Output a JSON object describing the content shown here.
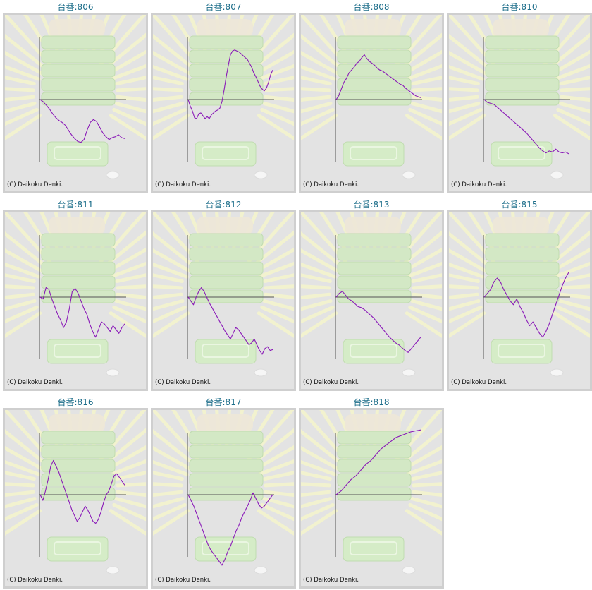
{
  "credit": "(C) Daikoku Denki.",
  "line_color": "#8a1ab8",
  "title_color": "#1d6e8a",
  "chart_data": [
    {
      "type": "line",
      "title": "台番:806",
      "values": [
        0.0,
        -0.12,
        -0.3,
        -0.5,
        -0.75,
        -0.95,
        -1.1,
        -1.2,
        -1.35,
        -1.6,
        -1.85,
        -2.05,
        -2.2,
        -2.25,
        -2.1,
        -1.6,
        -1.2,
        -1.05,
        -1.15,
        -1.45,
        -1.75,
        -1.95,
        -2.1,
        -2.0,
        -1.95,
        -1.85,
        -2.0,
        -2.05
      ]
    },
    {
      "type": "line",
      "title": "台番:807",
      "values": [
        0.0,
        -0.35,
        -0.6,
        -0.95,
        -1.0,
        -0.75,
        -0.7,
        -0.85,
        -1.0,
        -0.9,
        -1.0,
        -0.8,
        -0.7,
        -0.6,
        -0.55,
        -0.45,
        -0.1,
        0.5,
        1.2,
        1.8,
        2.35,
        2.55,
        2.6,
        2.55,
        2.5,
        2.4,
        2.3,
        2.2,
        2.1,
        1.9,
        1.7,
        1.4,
        1.2,
        0.95,
        0.7,
        0.55,
        0.45,
        0.6,
        0.9,
        1.3,
        1.55
      ]
    },
    {
      "type": "line",
      "title": "台番:808",
      "values": [
        0.0,
        0.2,
        0.55,
        0.9,
        1.1,
        1.4,
        1.55,
        1.7,
        1.9,
        2.0,
        2.2,
        2.35,
        2.15,
        2.0,
        1.9,
        1.8,
        1.65,
        1.55,
        1.5,
        1.4,
        1.3,
        1.2,
        1.1,
        1.0,
        0.9,
        0.8,
        0.75,
        0.6,
        0.5,
        0.4,
        0.3,
        0.2,
        0.15,
        0.1
      ]
    },
    {
      "type": "line",
      "title": "台番:810",
      "values": [
        0.0,
        -0.15,
        -0.2,
        -0.25,
        -0.4,
        -0.55,
        -0.7,
        -0.85,
        -1.0,
        -1.15,
        -1.3,
        -1.45,
        -1.6,
        -1.75,
        -1.95,
        -2.15,
        -2.35,
        -2.55,
        -2.7,
        -2.8,
        -2.7,
        -2.75,
        -2.6,
        -2.75,
        -2.8,
        -2.75,
        -2.85
      ]
    },
    {
      "type": "line",
      "title": "台番:811",
      "values": [
        0.0,
        -0.1,
        0.5,
        0.4,
        -0.1,
        -0.5,
        -0.9,
        -1.2,
        -1.6,
        -1.3,
        -0.6,
        0.3,
        0.45,
        0.2,
        -0.2,
        -0.6,
        -0.9,
        -1.4,
        -1.8,
        -2.1,
        -1.7,
        -1.3,
        -1.4,
        -1.6,
        -1.8,
        -1.5,
        -1.7,
        -1.9,
        -1.6,
        -1.4
      ]
    },
    {
      "type": "line",
      "title": "台番:812",
      "values": [
        0.0,
        -0.2,
        -0.4,
        0.0,
        0.3,
        0.5,
        0.3,
        0.0,
        -0.3,
        -0.55,
        -0.8,
        -1.05,
        -1.3,
        -1.55,
        -1.8,
        -2.0,
        -2.2,
        -1.9,
        -1.6,
        -1.7,
        -1.9,
        -2.1,
        -2.3,
        -2.5,
        -2.4,
        -2.2,
        -2.5,
        -2.8,
        -3.0,
        -2.7,
        -2.6,
        -2.8,
        -2.75
      ]
    },
    {
      "type": "line",
      "title": "台番:813",
      "values": [
        0.0,
        0.2,
        0.3,
        0.1,
        -0.1,
        -0.2,
        -0.35,
        -0.5,
        -0.55,
        -0.65,
        -0.8,
        -0.95,
        -1.1,
        -1.3,
        -1.5,
        -1.7,
        -1.9,
        -2.1,
        -2.25,
        -2.4,
        -2.5,
        -2.65,
        -2.8,
        -2.9,
        -2.7,
        -2.5,
        -2.3,
        -2.1
      ]
    },
    {
      "type": "line",
      "title": "台番:815",
      "values": [
        0.0,
        0.2,
        0.4,
        0.8,
        1.0,
        0.8,
        0.4,
        0.1,
        -0.2,
        -0.4,
        -0.1,
        -0.5,
        -0.8,
        -1.2,
        -1.5,
        -1.3,
        -1.6,
        -1.9,
        -2.1,
        -1.8,
        -1.4,
        -0.9,
        -0.4,
        0.1,
        0.6,
        1.0,
        1.3
      ]
    },
    {
      "type": "line",
      "title": "台番:816",
      "values": [
        0.0,
        -0.3,
        0.2,
        0.8,
        1.5,
        1.8,
        1.5,
        1.2,
        0.8,
        0.4,
        0.0,
        -0.4,
        -0.8,
        -1.1,
        -1.4,
        -1.2,
        -0.9,
        -0.6,
        -0.8,
        -1.1,
        -1.4,
        -1.5,
        -1.3,
        -0.9,
        -0.4,
        0.0,
        0.2,
        0.6,
        1.0,
        1.1,
        0.9,
        0.7,
        0.5
      ]
    },
    {
      "type": "line",
      "title": "台番:817",
      "values": [
        0.0,
        -0.3,
        -0.6,
        -1.0,
        -1.4,
        -1.8,
        -2.2,
        -2.6,
        -2.9,
        -3.1,
        -3.3,
        -3.5,
        -3.7,
        -3.4,
        -3.0,
        -2.7,
        -2.3,
        -1.9,
        -1.6,
        -1.2,
        -0.9,
        -0.6,
        -0.3,
        0.1,
        -0.2,
        -0.5,
        -0.7,
        -0.6,
        -0.4,
        -0.2,
        0.0
      ]
    },
    {
      "type": "line",
      "title": "台番:818",
      "values": [
        0.0,
        0.2,
        0.5,
        0.8,
        1.0,
        1.3,
        1.6,
        1.8,
        2.1,
        2.4,
        2.6,
        2.8,
        3.0,
        3.1,
        3.2,
        3.3,
        3.35,
        3.4
      ]
    }
  ]
}
